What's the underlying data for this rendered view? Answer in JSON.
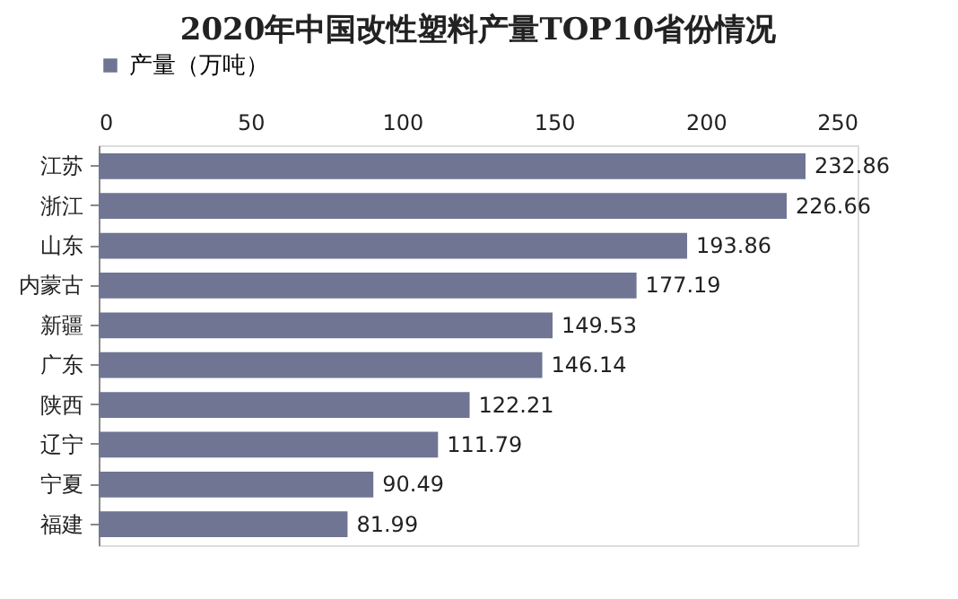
{
  "chart_data": {
    "type": "bar",
    "orientation": "horizontal",
    "title": "2020年中国改性塑料产量TOP10省份情况",
    "categories": [
      "江苏",
      "浙江",
      "山东",
      "内蒙古",
      "新疆",
      "广东",
      "陕西",
      "辽宁",
      "宁夏",
      "福建"
    ],
    "series": [
      {
        "name": "产量（万吨）",
        "color": "#6f7592",
        "values": [
          232.86,
          226.66,
          193.86,
          177.19,
          149.53,
          146.14,
          122.21,
          111.79,
          90.49,
          81.99
        ]
      }
    ],
    "xlim": [
      0,
      250
    ],
    "xticks": [
      0,
      50,
      100,
      150,
      200,
      250
    ],
    "data_labels": true,
    "legend": "top",
    "grid": false
  }
}
